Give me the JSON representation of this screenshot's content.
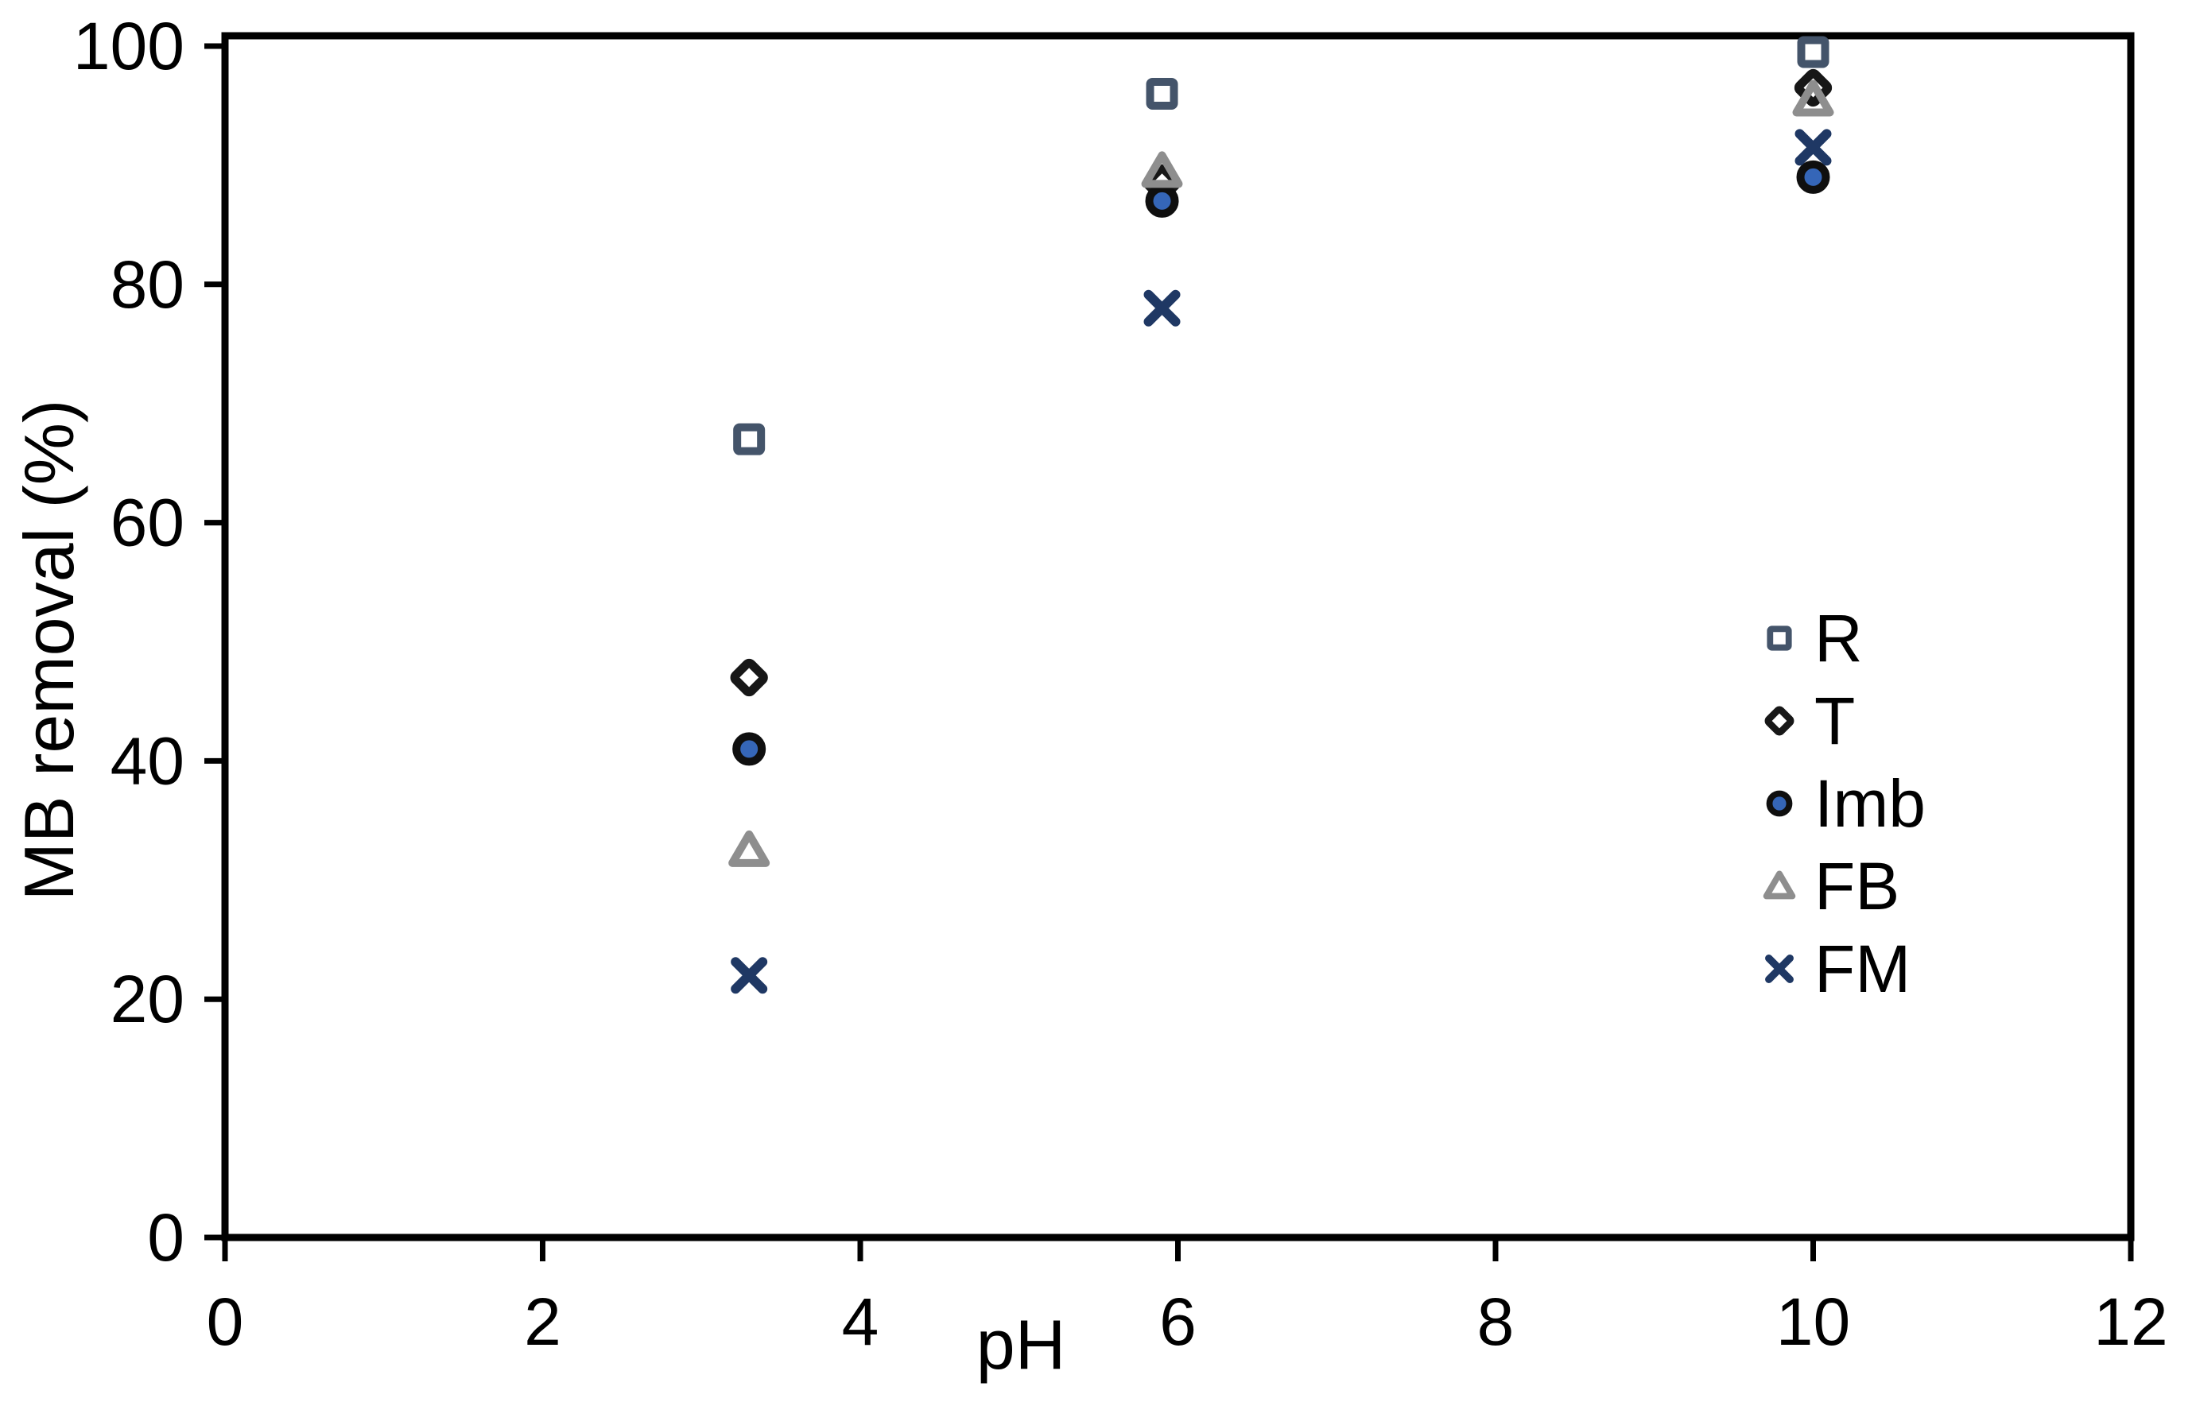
{
  "figure": {
    "background": "#FFFFFF",
    "axis_color": "#000000",
    "text_color": "#000000"
  },
  "chart_data": {
    "type": "scatter",
    "title": "",
    "xlabel": "pH",
    "ylabel": "MB removal (%)",
    "xlim": [
      0,
      12
    ],
    "ylim": [
      0,
      100
    ],
    "x_ticks": [
      0,
      2,
      4,
      6,
      8,
      10,
      12
    ],
    "y_ticks": [
      0,
      20,
      40,
      60,
      80,
      100
    ],
    "grid": false,
    "legend_position": "middle-right",
    "x": [
      3.3,
      5.9,
      10
    ],
    "series": [
      {
        "name": "R",
        "marker": "open-square",
        "color": "#44546A",
        "values": [
          67,
          96,
          99.5
        ]
      },
      {
        "name": "T",
        "marker": "open-diamond",
        "color": "#171717",
        "values": [
          47,
          88.5,
          96.5
        ]
      },
      {
        "name": "Imb",
        "marker": "filled-circle",
        "color": "#3566B8",
        "ring_color": "#0F0F0F",
        "values": [
          41,
          87,
          89
        ]
      },
      {
        "name": "FB",
        "marker": "open-triangle",
        "color": "#8E8E8E",
        "values": [
          32.5,
          89.5,
          95.5
        ]
      },
      {
        "name": "FM",
        "marker": "x-cross",
        "color": "#1F3864",
        "values": [
          22,
          78,
          91.5
        ]
      }
    ]
  }
}
